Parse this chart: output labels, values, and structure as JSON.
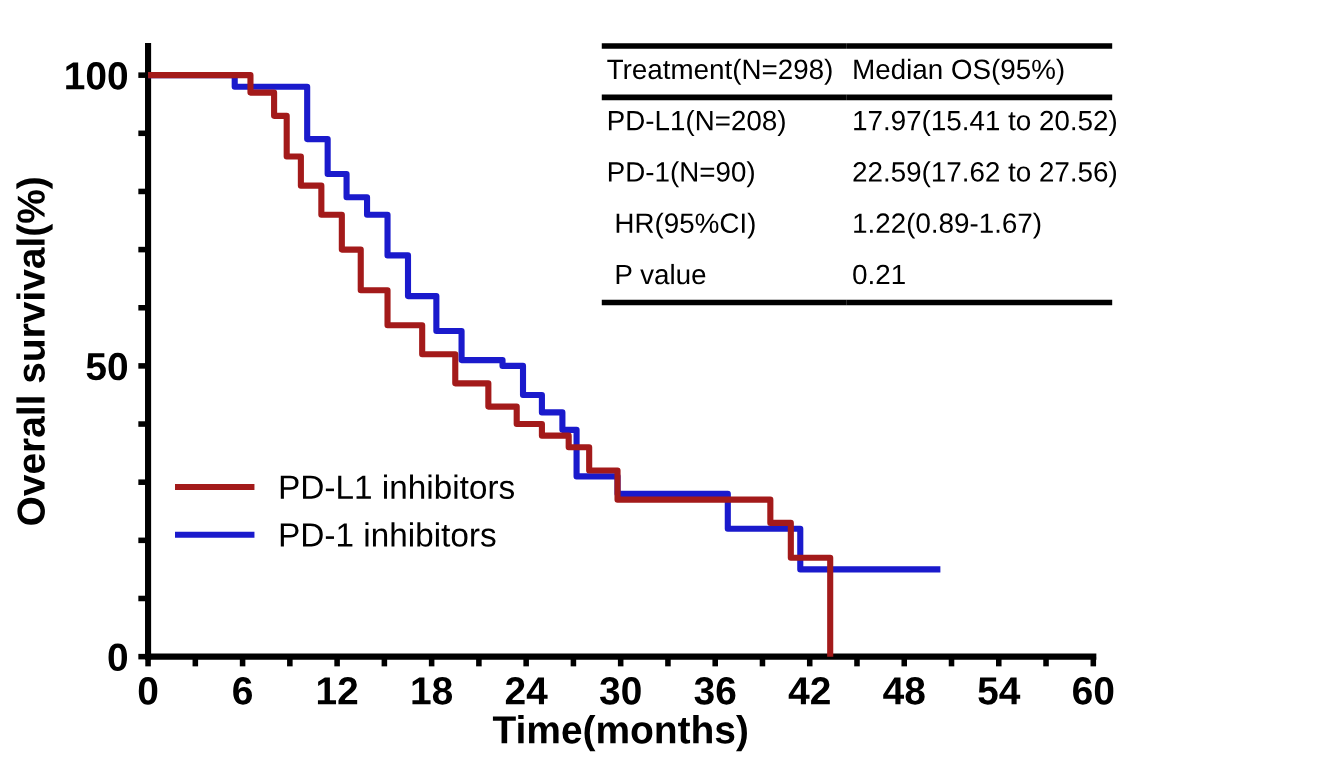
{
  "chart_data": {
    "type": "step",
    "xlabel": "Time(months)",
    "ylabel": "Overall survival(%)",
    "xlim": [
      0,
      60
    ],
    "ylim": [
      0,
      105
    ],
    "xticks": [
      0,
      {
        "value": 3,
        "label": null
      },
      6,
      {
        "value": 9,
        "label": null
      },
      12,
      {
        "value": 15,
        "label": null
      },
      18,
      {
        "value": 21,
        "label": null
      },
      24,
      {
        "value": 27,
        "label": null
      },
      30,
      {
        "value": 33,
        "label": null
      },
      36,
      {
        "value": 39,
        "label": null
      },
      42,
      {
        "value": 45,
        "label": null
      },
      48,
      {
        "value": 51,
        "label": null
      },
      54,
      {
        "value": 57,
        "label": null
      },
      60
    ],
    "yticks": [
      0,
      {
        "value": 10,
        "label": null
      },
      {
        "value": 20,
        "label": null
      },
      {
        "value": 30,
        "label": null
      },
      {
        "value": 40,
        "label": null
      },
      50,
      {
        "value": 60,
        "label": null
      },
      {
        "value": 70,
        "label": null
      },
      {
        "value": 80,
        "label": null
      },
      {
        "value": 90,
        "label": null
      },
      100
    ],
    "grid": false,
    "legend": "bottom left",
    "marker": "none",
    "line_style": "solid",
    "series": [
      {
        "name": "PD-L1 inhibitors",
        "color": "#a31a1a",
        "x": [
          0,
          6.5,
          8.0,
          8.8,
          9.7,
          11.0,
          12.3,
          13.5,
          15.2,
          17.4,
          19.5,
          21.6,
          23.4,
          25.0,
          26.7,
          28.0,
          29.8,
          38.7,
          39.5,
          40.8,
          43.3,
          43.3
        ],
        "values": [
          100,
          97,
          93,
          86,
          81,
          76,
          70,
          63,
          57,
          52,
          47,
          43,
          40,
          38,
          36,
          32,
          27,
          27,
          23,
          17,
          17,
          0
        ]
      },
      {
        "name": "PD-1 inhibitors",
        "color": "#1a1acc",
        "x": [
          0,
          5.5,
          9.3,
          10.1,
          11.4,
          12.6,
          13.9,
          15.2,
          16.5,
          18.3,
          19.9,
          22.5,
          23.8,
          25.0,
          26.3,
          27.2,
          29.8,
          36.8,
          41.4,
          50.1
        ],
        "values": [
          100,
          98,
          98,
          89,
          83,
          79,
          76,
          69,
          62,
          56,
          51,
          50,
          45,
          42,
          39,
          31,
          28,
          22,
          15,
          15
        ]
      }
    ],
    "annotations": [
      "Treatment(N=298)",
      "Median OS(95%)",
      "PD-L1(N=208)",
      "17.97(15.41 to 20.52)",
      "PD-1(N=90)",
      "22.59(17.62 to 27.56)",
      " HR(95%CI)",
      "1.22(0.89-1.67)",
      " P value",
      "0.21"
    ]
  }
}
